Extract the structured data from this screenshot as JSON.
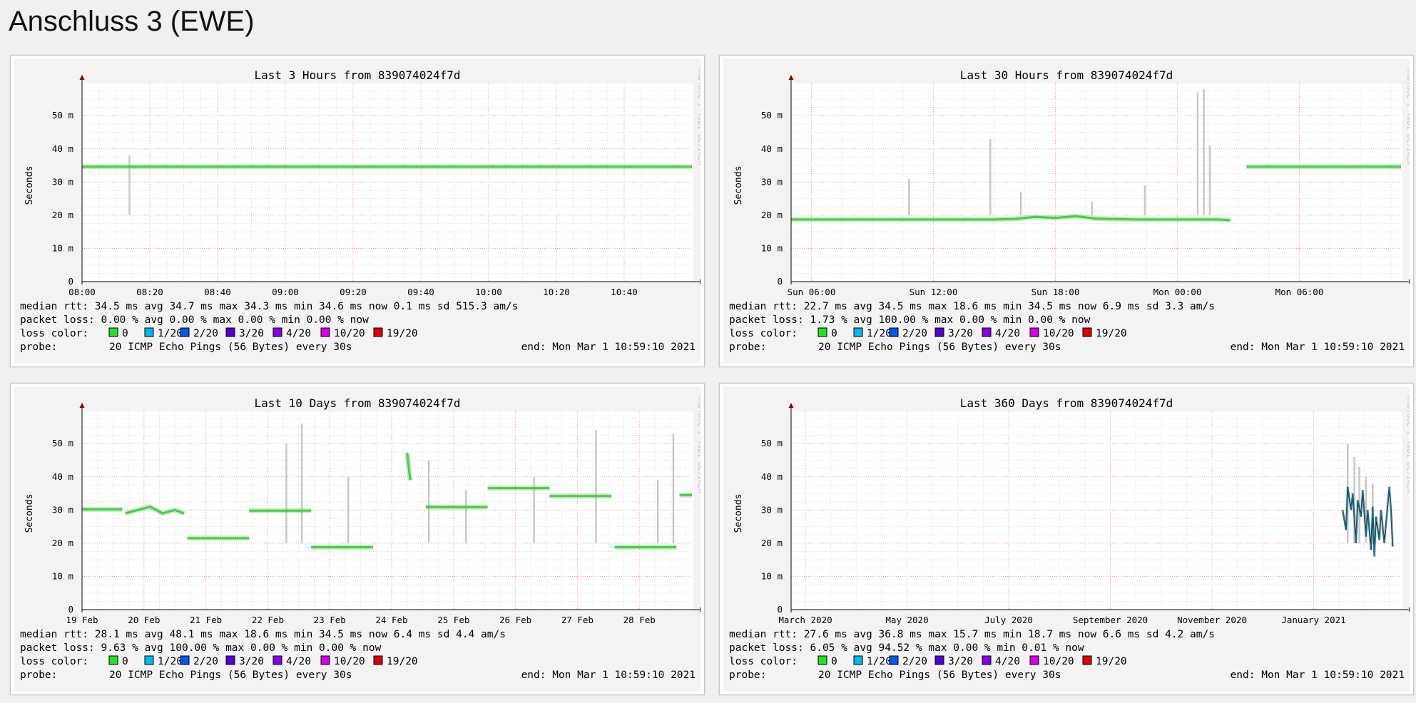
{
  "page_title": "Anschluss 3 (EWE)",
  "colors": {
    "median_line": "#2be22b",
    "smoke": "#8c8c8c",
    "major_grid": "#ff9b9b",
    "minor_grid": "#f1d7d7",
    "axis_arrow": "#8b0000",
    "loss_0": "#26e026",
    "loss_1_20": "#00b8f0",
    "loss_2_20": "#0059f0",
    "loss_3_20": "#5500d8",
    "loss_4_20": "#8d00e6",
    "loss_10_20": "#d500e8",
    "loss_19_20": "#e00000"
  },
  "charts": [
    {
      "title": "Last 3 Hours from 839074024f7d",
      "watermark": "RRDTOOL / TOBI OETIKER",
      "ylabel": "Seconds",
      "yticks": [
        "0",
        "10 m",
        "20 m",
        "30 m",
        "40 m",
        "50 m"
      ],
      "xticks": [
        "08:00",
        "08:20",
        "08:40",
        "09:00",
        "09:20",
        "09:40",
        "10:00",
        "10:20",
        "10:40"
      ],
      "median_rtt": "median rtt:   34.5 ms avg   34.7 ms max   34.3 ms min   34.6 ms now   0.1 ms sd   515.3    am/s",
      "packet_loss": "packet loss:  0.00 % avg   0.00 % max   0.00 % min   0.00 % now",
      "loss_color_label": "loss color:",
      "probe_label": "probe:",
      "probe_text": "20 ICMP Echo Pings (56 Bytes) every 30s",
      "end_text": "end: Mon Mar  1 10:59:10 2021"
    },
    {
      "title": "Last 30 Hours from 839074024f7d",
      "watermark": "RRDTOOL / TOBI OETIKER",
      "ylabel": "Seconds",
      "yticks": [
        "0",
        "10 m",
        "20 m",
        "30 m",
        "40 m",
        "50 m"
      ],
      "xticks": [
        "Sun 06:00",
        "Sun 12:00",
        "Sun 18:00",
        "Mon 00:00",
        "Mon 06:00"
      ],
      "median_rtt": "median rtt:   22.7 ms avg   34.5 ms max   18.6 ms min   34.5 ms now   6.9 ms sd   3.3    am/s",
      "packet_loss": "packet loss:  1.73 % avg   100.00 % max   0.00 % min   0.00 % now",
      "loss_color_label": "loss color:",
      "probe_label": "probe:",
      "probe_text": "20 ICMP Echo Pings (56 Bytes) every 30s",
      "end_text": "end: Mon Mar  1 10:59:10 2021"
    },
    {
      "title": "Last 10 Days from 839074024f7d",
      "watermark": "RRDTOOL / TOBI OETIKER",
      "ylabel": "Seconds",
      "yticks": [
        "0",
        "10 m",
        "20 m",
        "30 m",
        "40 m",
        "50 m"
      ],
      "xticks": [
        "19 Feb",
        "20 Feb",
        "21 Feb",
        "22 Feb",
        "23 Feb",
        "24 Feb",
        "25 Feb",
        "26 Feb",
        "27 Feb",
        "28 Feb"
      ],
      "median_rtt": "median rtt:   28.1 ms avg   48.1 ms max   18.6 ms min   34.5 ms now   6.4 ms sd   4.4    am/s",
      "packet_loss": "packet loss:  9.63 % avg   100.00 % max   0.00 % min   0.00 % now",
      "loss_color_label": "loss color:",
      "probe_label": "probe:",
      "probe_text": "20 ICMP Echo Pings (56 Bytes) every 30s",
      "end_text": "end: Mon Mar  1 10:59:10 2021"
    },
    {
      "title": "Last 360 Days from 839074024f7d",
      "watermark": "RRDTOOL / TOBI OETIKER",
      "ylabel": "Seconds",
      "yticks": [
        "0",
        "10 m",
        "20 m",
        "30 m",
        "40 m",
        "50 m"
      ],
      "xticks": [
        "March 2020",
        "May 2020",
        "July 2020",
        "September 2020",
        "November 2020",
        "January 2021"
      ],
      "median_rtt": "median rtt:   27.6 ms avg   36.8 ms max   15.7 ms min   18.7 ms now   6.6 ms sd   4.2    am/s",
      "packet_loss": "packet loss:  6.05 % avg   94.52 % max   0.00 % min   0.01 % now",
      "loss_color_label": "loss color:",
      "probe_label": "probe:",
      "probe_text": "20 ICMP Echo Pings (56 Bytes) every 30s",
      "end_text": "end: Mon Mar  1 10:59:10 2021"
    }
  ],
  "loss_legend": [
    {
      "label": "0",
      "color": "#26e026"
    },
    {
      "label": "1/20",
      "color": "#00b8f0"
    },
    {
      "label": "2/20",
      "color": "#0059f0"
    },
    {
      "label": "3/20",
      "color": "#5500d8"
    },
    {
      "label": "4/20",
      "color": "#8d00e6"
    },
    {
      "label": "10/20",
      "color": "#d500e8"
    },
    {
      "label": "19/20",
      "color": "#e00000"
    }
  ],
  "chart_data": [
    {
      "type": "line",
      "title": "Last 3 Hours from 839074024f7d",
      "ylabel": "Seconds",
      "ylim": [
        0,
        0.058
      ],
      "x_unit": "minutes since 08:00",
      "xlim": [
        0,
        180
      ],
      "series": [
        {
          "segments": [
            [
              [
                0,
                0.0346
              ],
              [
                180,
                0.0346
              ]
            ]
          ]
        }
      ],
      "spikes": [
        [
          14,
          0.038
        ]
      ]
    },
    {
      "type": "line",
      "title": "Last 30 Hours from 839074024f7d",
      "ylabel": "Seconds",
      "ylim": [
        0,
        0.058
      ],
      "x_unit": "hours since Sun 05:00",
      "xlim": [
        0,
        30
      ],
      "series": [
        {
          "segments": [
            [
              [
                0,
                0.0187
              ],
              [
                10,
                0.0187
              ],
              [
                11,
                0.0189
              ],
              [
                12,
                0.0195
              ],
              [
                13,
                0.0192
              ],
              [
                14,
                0.0197
              ],
              [
                15,
                0.019
              ],
              [
                17,
                0.0187
              ],
              [
                21,
                0.0187
              ],
              [
                21.6,
                0.0185
              ]
            ],
            [
              [
                22.4,
                0.0346
              ],
              [
                30,
                0.0346
              ]
            ]
          ]
        }
      ],
      "spikes": [
        [
          5.8,
          0.031
        ],
        [
          9.8,
          0.043
        ],
        [
          11.3,
          0.027
        ],
        [
          14.8,
          0.024
        ],
        [
          17.4,
          0.029
        ],
        [
          20,
          0.057
        ],
        [
          20.3,
          0.058
        ],
        [
          20.6,
          0.041
        ]
      ]
    },
    {
      "type": "line",
      "title": "Last 10 Days from 839074024f7d",
      "ylabel": "Seconds",
      "ylim": [
        0,
        0.058
      ],
      "x_unit": "days since 19 Feb 00:00",
      "xlim": [
        0,
        9.85
      ],
      "series": [
        {
          "segments": [
            [
              [
                0,
                0.0302
              ],
              [
                0.65,
                0.0302
              ]
            ],
            [
              [
                0.7,
                0.029
              ],
              [
                0.9,
                0.03
              ],
              [
                1.1,
                0.031
              ],
              [
                1.3,
                0.029
              ],
              [
                1.5,
                0.03
              ],
              [
                1.65,
                0.029
              ]
            ],
            [
              [
                1.7,
                0.0215
              ],
              [
                2.7,
                0.0215
              ]
            ],
            [
              [
                2.7,
                0.0298
              ],
              [
                3.7,
                0.0298
              ]
            ],
            [
              [
                3.7,
                0.0188
              ],
              [
                4.7,
                0.0188
              ]
            ],
            [
              [
                5.25,
                0.0472
              ],
              [
                5.3,
                0.039
              ]
            ],
            [
              [
                5.55,
                0.0309
              ],
              [
                6.55,
                0.0309
              ]
            ],
            [
              [
                6.55,
                0.0366
              ],
              [
                7.55,
                0.0366
              ]
            ],
            [
              [
                7.55,
                0.0342
              ],
              [
                8.55,
                0.0342
              ]
            ],
            [
              [
                8.6,
                0.0188
              ],
              [
                9.6,
                0.0188
              ]
            ],
            [
              [
                9.65,
                0.0345
              ],
              [
                9.85,
                0.0345
              ]
            ]
          ]
        }
      ],
      "spikes": [
        [
          3.3,
          0.05
        ],
        [
          3.55,
          0.056
        ],
        [
          4.3,
          0.04
        ],
        [
          5.6,
          0.045
        ],
        [
          6.2,
          0.036
        ],
        [
          7.3,
          0.04
        ],
        [
          8.3,
          0.054
        ],
        [
          9.3,
          0.039
        ],
        [
          9.55,
          0.053
        ]
      ]
    },
    {
      "type": "line",
      "title": "Last 360 Days from 839074024f7d",
      "ylabel": "Seconds",
      "ylim": [
        0,
        0.058
      ],
      "x_unit": "days since 01 Mar 2020",
      "xlim": [
        0,
        366
      ],
      "series": [
        {
          "segments": [
            [
              [
                331,
                0.03
              ],
              [
                333,
                0.024
              ],
              [
                334,
                0.037
              ],
              [
                336,
                0.03
              ],
              [
                337,
                0.035
              ],
              [
                339,
                0.02
              ],
              [
                340,
                0.033
              ],
              [
                342,
                0.028
              ],
              [
                343,
                0.036
              ],
              [
                345,
                0.022
              ],
              [
                346,
                0.03
              ],
              [
                348,
                0.018
              ],
              [
                349,
                0.031
              ],
              [
                350,
                0.016
              ],
              [
                351,
                0.028
              ],
              [
                353,
                0.021
              ],
              [
                354,
                0.03
              ],
              [
                356,
                0.02
              ],
              [
                357,
                0.026
              ],
              [
                359,
                0.037
              ],
              [
                360,
                0.03
              ],
              [
                361,
                0.019
              ]
            ]
          ]
        }
      ],
      "spikes": [
        [
          334,
          0.05
        ],
        [
          338,
          0.046
        ],
        [
          341,
          0.043
        ],
        [
          345,
          0.04
        ],
        [
          349,
          0.038
        ]
      ]
    }
  ]
}
